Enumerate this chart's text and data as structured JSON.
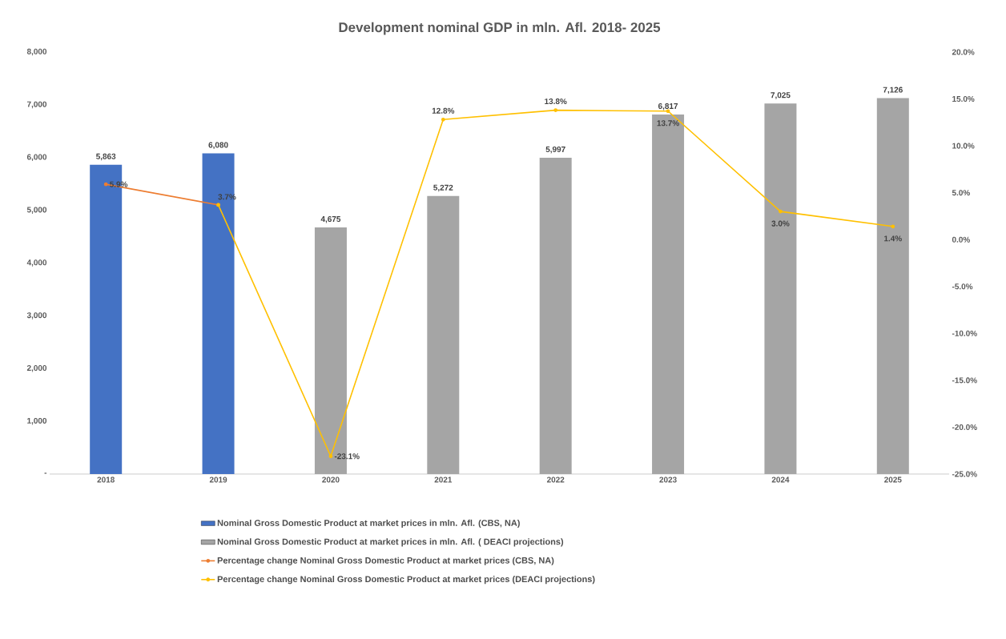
{
  "chart_data": {
    "type": "bar",
    "title": "Development nominal GDP in mln. Afl.  2018- 2025",
    "categories": [
      "2018",
      "2019",
      "2020",
      "2021",
      "2022",
      "2023",
      "2024",
      "2025"
    ],
    "series": [
      {
        "name": "Nominal Gross Domestic Product at market prices in mln. Afl. (CBS, NA)",
        "color": "#4472c4",
        "values": [
          5863,
          6080,
          null,
          null,
          null,
          null,
          null,
          null
        ],
        "value_labels": [
          "5,863",
          "6,080",
          null,
          null,
          null,
          null,
          null,
          null
        ]
      },
      {
        "name": "Nominal Gross Domestic Product at market prices in mln. Afl. ( DEACI projections)",
        "color": "#a5a5a5",
        "values": [
          null,
          null,
          4675,
          5272,
          5997,
          6817,
          7025,
          7126
        ],
        "value_labels": [
          null,
          null,
          "4,675",
          "5,272",
          "5,997",
          "6,817",
          "7,025",
          "7,126"
        ]
      },
      {
        "name": "Percentage change Nominal Gross Domestic Product at market prices (CBS, NA)",
        "type": "line",
        "axis": "y2",
        "color": "#ed7d31",
        "values": [
          5.9,
          3.7,
          null,
          null,
          null,
          null,
          null,
          null
        ],
        "value_labels": [
          "5.9%",
          "3.7%",
          null,
          null,
          null,
          null,
          null,
          null
        ]
      },
      {
        "name": "Percentage change Nominal Gross Domestic Product at market prices (DEACI projections)",
        "type": "line",
        "axis": "y2",
        "color": "#ffc000",
        "values": [
          null,
          3.7,
          -23.1,
          12.8,
          13.8,
          13.7,
          3.0,
          1.4
        ],
        "value_labels": [
          null,
          null,
          "-23.1%",
          "12.8%",
          "13.8%",
          "13.7%",
          "3.0%",
          "1.4%"
        ]
      }
    ],
    "ylim": [
      0,
      8000
    ],
    "yticks": [
      {
        "value": 0,
        "label": "-"
      },
      {
        "value": 1000,
        "label": "1,000"
      },
      {
        "value": 2000,
        "label": "2,000"
      },
      {
        "value": 3000,
        "label": "3,000"
      },
      {
        "value": 4000,
        "label": "4,000"
      },
      {
        "value": 5000,
        "label": "5,000"
      },
      {
        "value": 6000,
        "label": "6,000"
      },
      {
        "value": 7000,
        "label": "7,000"
      },
      {
        "value": 8000,
        "label": "8,000"
      }
    ],
    "y2lim": [
      -25,
      20
    ],
    "y2ticks": [
      {
        "value": -25,
        "label": "-25.0%"
      },
      {
        "value": -20,
        "label": "-20.0%"
      },
      {
        "value": -15,
        "label": "-15.0%"
      },
      {
        "value": -10,
        "label": "-10.0%"
      },
      {
        "value": -5,
        "label": "-5.0%"
      },
      {
        "value": 0,
        "label": "0.0%"
      },
      {
        "value": 5,
        "label": "5.0%"
      },
      {
        "value": 10,
        "label": "10.0%"
      },
      {
        "value": 15,
        "label": "15.0%"
      },
      {
        "value": 20,
        "label": "20.0%"
      }
    ],
    "marker": "circle",
    "legend": "bottom"
  }
}
